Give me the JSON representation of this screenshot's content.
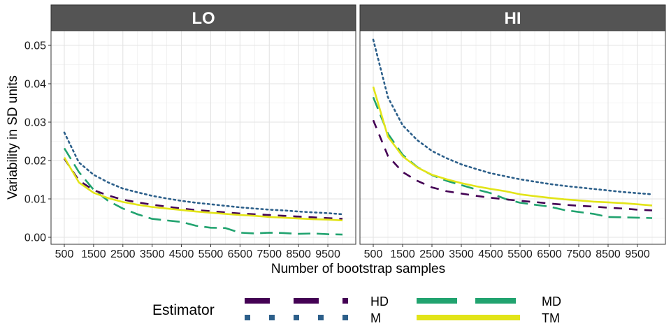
{
  "chart_data": {
    "type": "line",
    "facets": [
      "LO",
      "HI"
    ],
    "xlabel": "Number of bootstrap samples",
    "ylabel": "Variability in SD units",
    "x_ticks": [
      500,
      1500,
      2500,
      3500,
      4500,
      5500,
      6500,
      7500,
      8500,
      9500
    ],
    "x_tick_labels": [
      "500",
      "1500",
      "2500",
      "3500",
      "4500",
      "5500",
      "6500",
      "7500",
      "8500",
      "9500"
    ],
    "y_ticks": [
      0.0,
      0.01,
      0.02,
      0.03,
      0.04,
      0.05
    ],
    "y_tick_labels": [
      "0.00",
      "0.01",
      "0.02",
      "0.03",
      "0.04",
      "0.05"
    ],
    "xlim": [
      500,
      10000
    ],
    "ylim": [
      0,
      0.05
    ],
    "x": [
      500,
      1000,
      1500,
      2000,
      2500,
      3000,
      3500,
      4000,
      4500,
      5000,
      5500,
      6000,
      6500,
      7000,
      7500,
      8000,
      8500,
      9000,
      9500,
      10000
    ],
    "legend": {
      "title": "Estimator",
      "position": "bottom"
    },
    "grid": true,
    "panels": [
      {
        "facet": "LO",
        "series": [
          {
            "name": "HD",
            "values": [
              0.0205,
              0.0148,
              0.0123,
              0.0109,
              0.0098,
              0.0091,
              0.0085,
              0.008,
              0.0075,
              0.0071,
              0.0068,
              0.0065,
              0.0062,
              0.006,
              0.0058,
              0.0056,
              0.0054,
              0.0052,
              0.005,
              0.0048
            ]
          },
          {
            "name": "M",
            "values": [
              0.0273,
              0.0195,
              0.0163,
              0.0143,
              0.0127,
              0.0117,
              0.0108,
              0.0101,
              0.0095,
              0.009,
              0.0086,
              0.0082,
              0.0078,
              0.0075,
              0.0072,
              0.007,
              0.0067,
              0.0065,
              0.0063,
              0.006
            ]
          },
          {
            "name": "MD",
            "values": [
              0.0232,
              0.017,
              0.0124,
              0.0095,
              0.0075,
              0.006,
              0.0048,
              0.0044,
              0.004,
              0.003,
              0.0025,
              0.0024,
              0.0012,
              0.001,
              0.0012,
              0.0011,
              0.0009,
              0.001,
              0.0008,
              0.0007
            ]
          },
          {
            "name": "TM",
            "values": [
              0.0208,
              0.0143,
              0.0116,
              0.0102,
              0.0092,
              0.0085,
              0.0079,
              0.0075,
              0.0071,
              0.0067,
              0.0064,
              0.0061,
              0.0058,
              0.0056,
              0.0053,
              0.0051,
              0.0049,
              0.0047,
              0.0046,
              0.0044
            ]
          }
        ]
      },
      {
        "facet": "HI",
        "series": [
          {
            "name": "HD",
            "values": [
              0.0305,
              0.0212,
              0.017,
              0.0147,
              0.013,
              0.012,
              0.0114,
              0.0108,
              0.0103,
              0.0099,
              0.0095,
              0.0092,
              0.0088,
              0.0085,
              0.0082,
              0.008,
              0.0077,
              0.0075,
              0.0072,
              0.007
            ]
          },
          {
            "name": "M",
            "values": [
              0.0515,
              0.0365,
              0.0292,
              0.0253,
              0.0225,
              0.0206,
              0.019,
              0.0178,
              0.0167,
              0.0159,
              0.0151,
              0.0145,
              0.0139,
              0.0134,
              0.013,
              0.0126,
              0.0122,
              0.0118,
              0.0115,
              0.0112
            ]
          },
          {
            "name": "MD",
            "values": [
              0.0365,
              0.027,
              0.0215,
              0.0183,
              0.0162,
              0.0147,
              0.0136,
              0.0125,
              0.0115,
              0.01,
              0.009,
              0.0085,
              0.008,
              0.0071,
              0.0066,
              0.0061,
              0.0053,
              0.0052,
              0.0051,
              0.005
            ]
          },
          {
            "name": "TM",
            "values": [
              0.0392,
              0.0262,
              0.0211,
              0.0182,
              0.0163,
              0.0151,
              0.0141,
              0.0133,
              0.0126,
              0.012,
              0.0112,
              0.0107,
              0.0103,
              0.0099,
              0.0096,
              0.0093,
              0.0091,
              0.0089,
              0.0086,
              0.0083
            ]
          }
        ]
      }
    ],
    "styles": {
      "HD": {
        "color": "#440154",
        "dash": "12,10"
      },
      "M": {
        "color": "#2C5F8A",
        "dash": "2.5,4.5"
      },
      "MD": {
        "color": "#21A36F",
        "dash": "18,9"
      },
      "TM": {
        "color": "#E2E418",
        "dash": ""
      }
    }
  }
}
